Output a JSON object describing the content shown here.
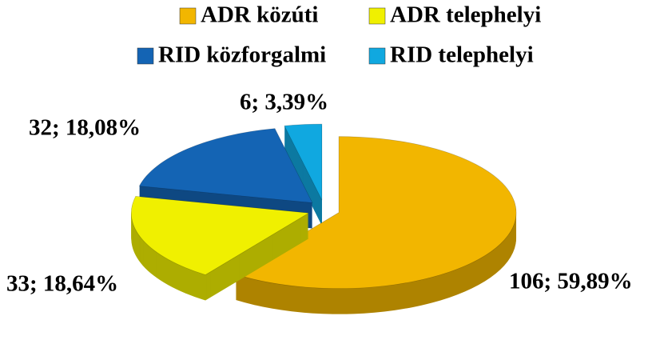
{
  "chart_data": {
    "type": "pie",
    "categories": [
      "ADR közúti",
      "ADR telephelyi",
      "RID közforgalmi",
      "RID telephelyi"
    ],
    "values": [
      106,
      33,
      32,
      6
    ],
    "value_labels": [
      "106; 59,89%",
      "33; 18,64%",
      "32; 18,08%",
      "6; 3,39%"
    ],
    "colors": [
      "#f2b600",
      "#f0f000",
      "#1464b4",
      "#10a8e0"
    ],
    "legend": "top"
  }
}
